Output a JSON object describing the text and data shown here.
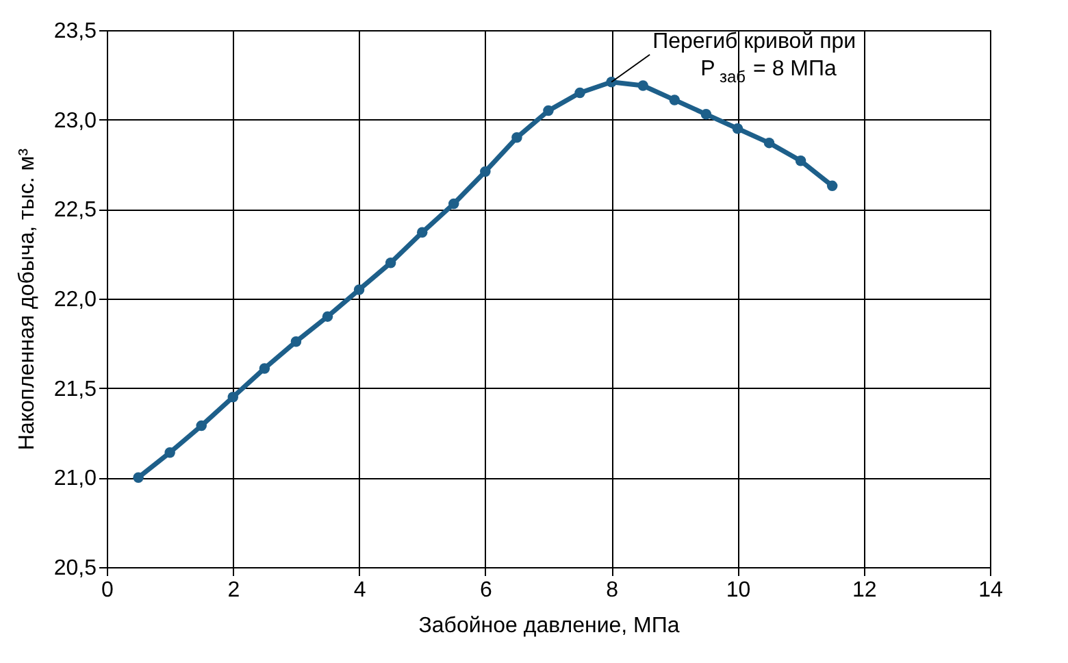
{
  "chart_data": {
    "type": "line",
    "xlabel": "Забойное давление, МПа",
    "ylabel": "Накопленная добыча, тыс. м³",
    "x": [
      0.5,
      1,
      1.5,
      2,
      2.5,
      3,
      3.5,
      4,
      4.5,
      5,
      5.5,
      6,
      6.5,
      7,
      7.5,
      8,
      8.5,
      9,
      9.5,
      10,
      10.5,
      11,
      11.5
    ],
    "series": [
      {
        "color": "#1d5f8a",
        "values": [
          21.0,
          21.14,
          21.29,
          21.45,
          21.61,
          21.76,
          21.9,
          22.05,
          22.2,
          22.37,
          22.53,
          22.71,
          22.9,
          23.05,
          23.15,
          23.21,
          23.19,
          23.11,
          23.03,
          22.95,
          22.87,
          22.77,
          22.63
        ]
      }
    ],
    "xlim": [
      0,
      14
    ],
    "xticks": [
      0,
      2,
      4,
      6,
      8,
      10,
      12,
      14
    ],
    "ylim": [
      20.5,
      23.5
    ],
    "yticks": [
      {
        "value": 20.5,
        "label": "20,5"
      },
      {
        "value": 21.0,
        "label": "21,0"
      },
      {
        "value": 21.5,
        "label": "21,5"
      },
      {
        "value": 22.0,
        "label": "22,0"
      },
      {
        "value": 22.5,
        "label": "22,5"
      },
      {
        "value": 23.0,
        "label": "23,0"
      },
      {
        "value": 23.5,
        "label": "23,5"
      }
    ],
    "grid": true,
    "marker": "circle",
    "line_style": "solid",
    "annotations": [
      {
        "text": "Перегиб кривой при\nP$_{заб}$ = 8 МПа",
        "x": 8,
        "y": 23.21
      }
    ]
  }
}
